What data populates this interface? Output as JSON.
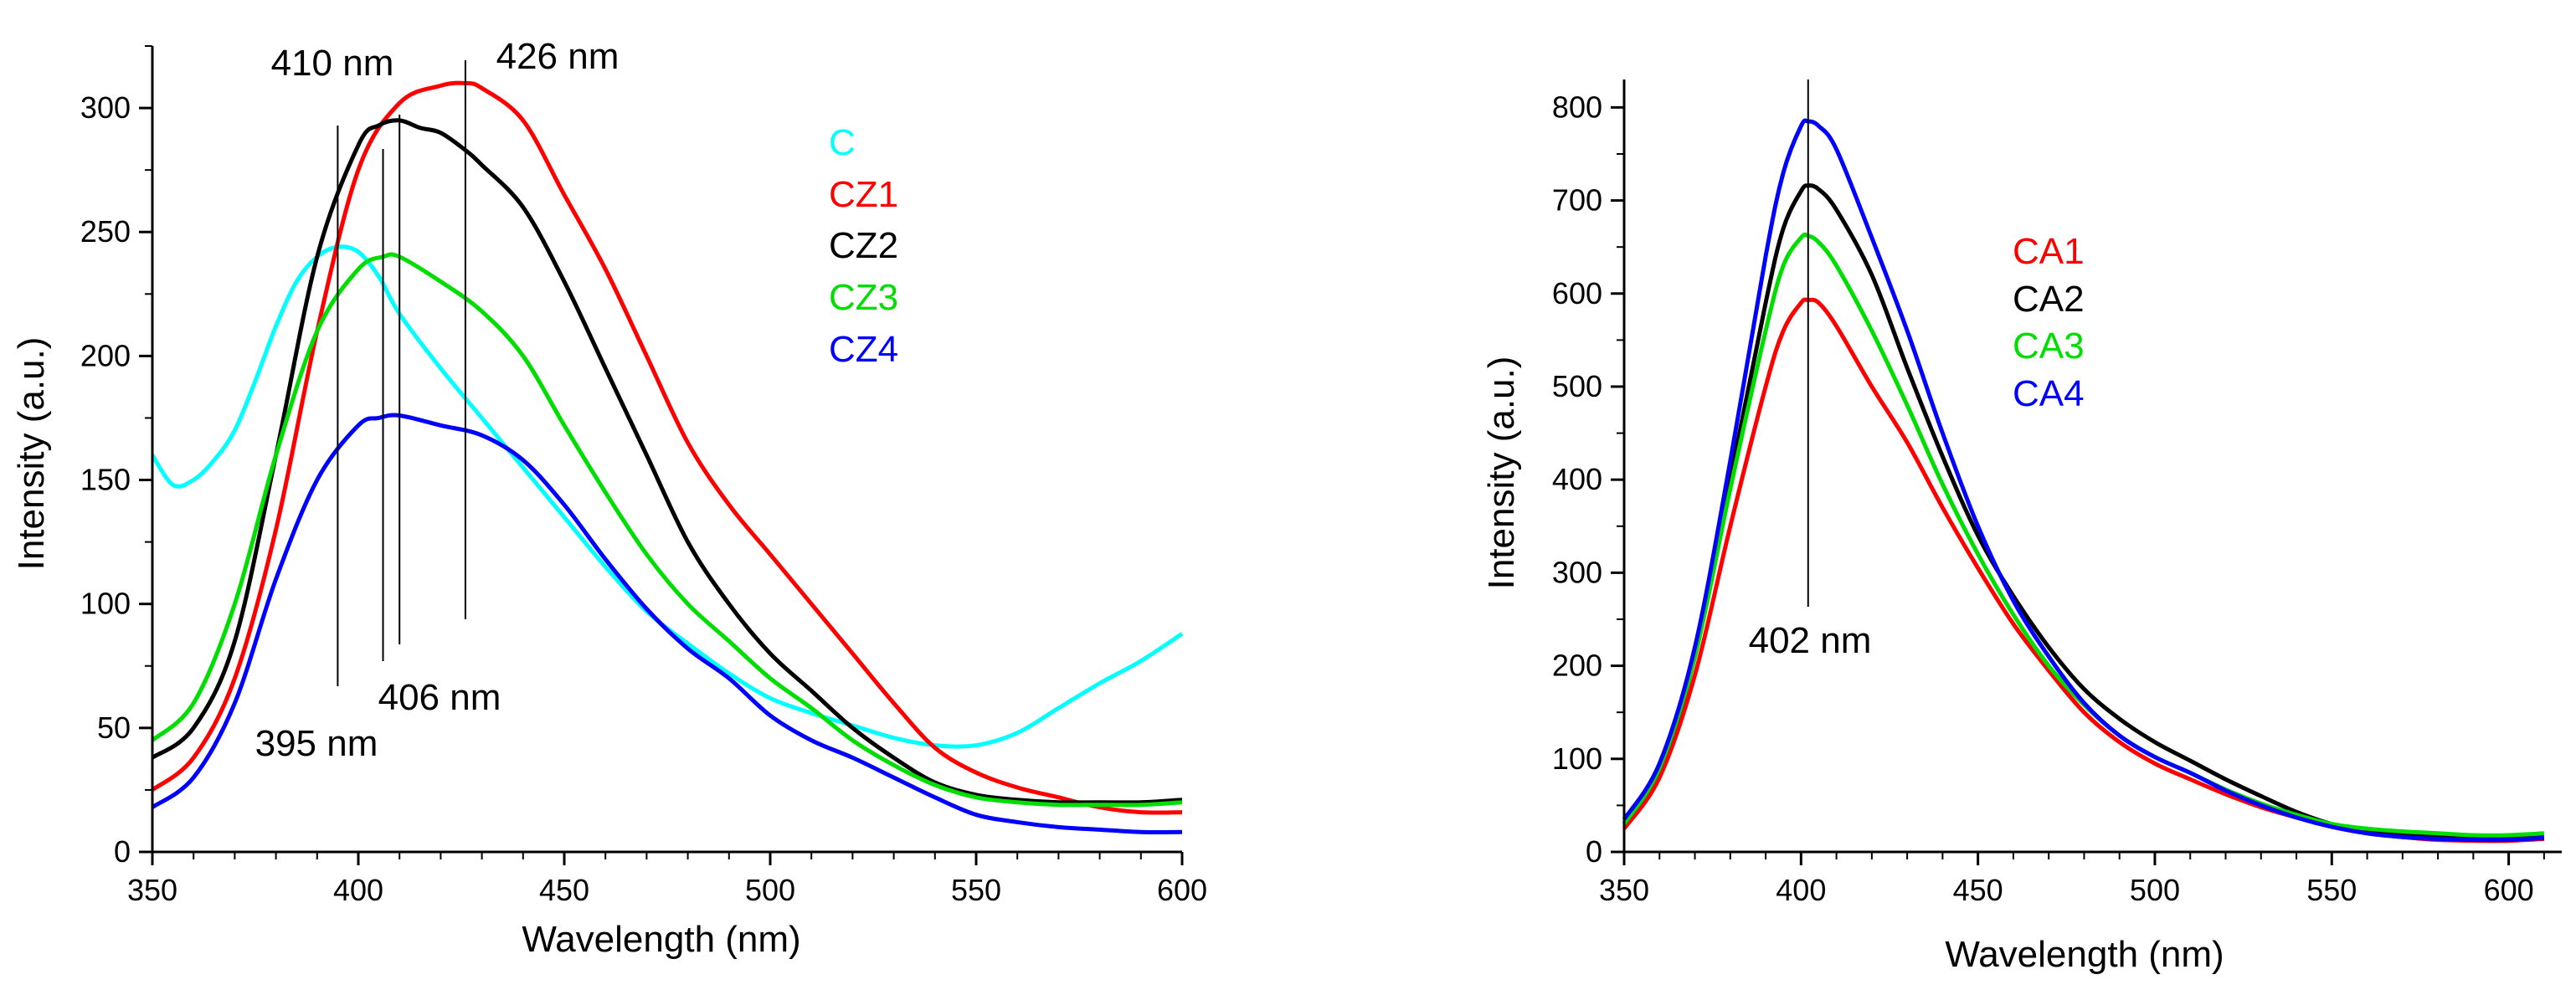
{
  "chart_data": [
    {
      "type": "line",
      "xlabel": "Wavelength (nm)",
      "ylabel": "Intensity (a.u.)",
      "xlim": [
        350,
        600
      ],
      "ylim": [
        0,
        325
      ],
      "xticks": [
        350,
        400,
        450,
        500,
        550,
        600
      ],
      "yticks": [
        0,
        50,
        100,
        150,
        200,
        250,
        300
      ],
      "legend_position": "top-right",
      "series": [
        {
          "name": "C",
          "color": "#00ffff",
          "x": [
            350,
            355,
            360,
            365,
            370,
            375,
            380,
            385,
            390,
            395,
            400,
            405,
            410,
            420,
            430,
            440,
            450,
            460,
            470,
            480,
            490,
            500,
            510,
            520,
            530,
            540,
            550,
            560,
            570,
            580,
            590,
            600
          ],
          "y": [
            160,
            148,
            150,
            158,
            170,
            190,
            212,
            230,
            240,
            244,
            242,
            232,
            217,
            195,
            175,
            155,
            135,
            115,
            97,
            84,
            72,
            62,
            56,
            51,
            46,
            43,
            43,
            48,
            58,
            68,
            77,
            88
          ]
        },
        {
          "name": "CZ1",
          "color": "#ff0000",
          "x": [
            350,
            360,
            370,
            380,
            390,
            400,
            410,
            420,
            426,
            430,
            440,
            450,
            460,
            470,
            480,
            490,
            500,
            510,
            520,
            530,
            540,
            550,
            560,
            570,
            580,
            590,
            600
          ],
          "y": [
            25,
            38,
            70,
            130,
            210,
            275,
            302,
            309,
            310,
            308,
            295,
            265,
            235,
            200,
            165,
            140,
            120,
            100,
            80,
            60,
            42,
            32,
            26,
            22,
            18,
            16,
            16
          ]
        },
        {
          "name": "CZ2",
          "color": "#000000",
          "x": [
            350,
            360,
            370,
            380,
            390,
            400,
            405,
            410,
            415,
            420,
            426,
            430,
            440,
            450,
            460,
            470,
            480,
            490,
            500,
            510,
            520,
            530,
            540,
            550,
            560,
            570,
            580,
            590,
            600
          ],
          "y": [
            38,
            50,
            85,
            160,
            240,
            285,
            293,
            295,
            292,
            290,
            283,
            277,
            260,
            230,
            195,
            160,
            125,
            100,
            80,
            65,
            50,
            38,
            28,
            23,
            21,
            20,
            20,
            20,
            21
          ]
        },
        {
          "name": "CZ3",
          "color": "#00dd00",
          "x": [
            350,
            360,
            370,
            380,
            390,
            400,
            406,
            410,
            420,
            430,
            440,
            450,
            460,
            470,
            480,
            490,
            500,
            510,
            520,
            530,
            540,
            550,
            560,
            570,
            580,
            590,
            600
          ],
          "y": [
            45,
            60,
            100,
            160,
            210,
            235,
            240,
            240,
            230,
            218,
            200,
            172,
            145,
            120,
            100,
            85,
            70,
            58,
            45,
            35,
            27,
            22,
            20,
            19,
            19,
            19,
            20
          ]
        },
        {
          "name": "CZ4",
          "color": "#0000ff",
          "x": [
            350,
            360,
            370,
            380,
            390,
            400,
            405,
            410,
            420,
            430,
            440,
            450,
            460,
            470,
            480,
            490,
            500,
            510,
            520,
            530,
            540,
            550,
            560,
            570,
            580,
            590,
            600
          ],
          "y": [
            18,
            30,
            60,
            110,
            150,
            172,
            175,
            176,
            172,
            168,
            158,
            140,
            118,
            98,
            82,
            70,
            55,
            45,
            38,
            30,
            22,
            15,
            12,
            10,
            9,
            8,
            8
          ]
        }
      ],
      "annotations": [
        {
          "label": "410 nm",
          "x": 410
        },
        {
          "label": "426 nm",
          "x": 426
        },
        {
          "label": "406 nm",
          "x": 406
        },
        {
          "label": "395 nm",
          "x": 395
        }
      ]
    },
    {
      "type": "line",
      "xlabel": "Wavelength (nm)",
      "ylabel": "Intensity (a.u.)",
      "xlim": [
        350,
        615
      ],
      "ylim": [
        0,
        830
      ],
      "xticks": [
        350,
        400,
        450,
        500,
        550,
        600
      ],
      "yticks": [
        0,
        100,
        200,
        300,
        400,
        500,
        600,
        700,
        800
      ],
      "legend_position": "center-right",
      "series": [
        {
          "name": "CA1",
          "color": "#ff0000",
          "x": [
            350,
            360,
            370,
            380,
            390,
            395,
            400,
            402,
            405,
            410,
            420,
            430,
            440,
            450,
            460,
            470,
            480,
            490,
            500,
            510,
            520,
            530,
            540,
            550,
            560,
            570,
            580,
            590,
            600,
            610
          ],
          "y": [
            25,
            80,
            190,
            350,
            500,
            560,
            590,
            593,
            590,
            565,
            500,
            440,
            370,
            305,
            245,
            195,
            150,
            118,
            95,
            78,
            62,
            48,
            37,
            27,
            20,
            16,
            13,
            12,
            12,
            14
          ]
        },
        {
          "name": "CA2",
          "color": "#000000",
          "x": [
            350,
            360,
            370,
            380,
            390,
            395,
            400,
            402,
            405,
            410,
            420,
            430,
            440,
            450,
            460,
            470,
            480,
            490,
            500,
            510,
            520,
            530,
            540,
            550,
            560,
            570,
            580,
            590,
            600,
            610
          ],
          "y": [
            30,
            90,
            210,
            400,
            590,
            670,
            710,
            716,
            712,
            690,
            620,
            520,
            425,
            340,
            275,
            220,
            175,
            143,
            118,
            98,
            78,
            60,
            43,
            30,
            23,
            19,
            16,
            15,
            15,
            16
          ]
        },
        {
          "name": "CA3",
          "color": "#00dd00",
          "x": [
            350,
            360,
            370,
            380,
            390,
            395,
            400,
            402,
            405,
            410,
            420,
            430,
            440,
            450,
            460,
            470,
            480,
            490,
            500,
            510,
            520,
            530,
            540,
            550,
            560,
            570,
            580,
            590,
            600,
            610
          ],
          "y": [
            30,
            90,
            210,
            390,
            560,
            630,
            660,
            662,
            655,
            630,
            560,
            480,
            395,
            320,
            255,
            200,
            158,
            125,
            102,
            85,
            67,
            52,
            40,
            30,
            25,
            22,
            20,
            18,
            18,
            20
          ]
        },
        {
          "name": "CA4",
          "color": "#0000ff",
          "x": [
            350,
            360,
            370,
            380,
            390,
            395,
            400,
            402,
            405,
            410,
            420,
            430,
            440,
            450,
            460,
            470,
            480,
            490,
            500,
            510,
            520,
            530,
            540,
            550,
            560,
            570,
            580,
            590,
            600,
            610
          ],
          "y": [
            35,
            95,
            220,
            420,
            640,
            730,
            780,
            785,
            780,
            755,
            660,
            560,
            450,
            350,
            270,
            210,
            160,
            125,
            102,
            85,
            66,
            50,
            37,
            27,
            20,
            16,
            14,
            13,
            13,
            15
          ]
        }
      ],
      "annotations": [
        {
          "label": "402 nm",
          "x": 402
        }
      ]
    }
  ]
}
